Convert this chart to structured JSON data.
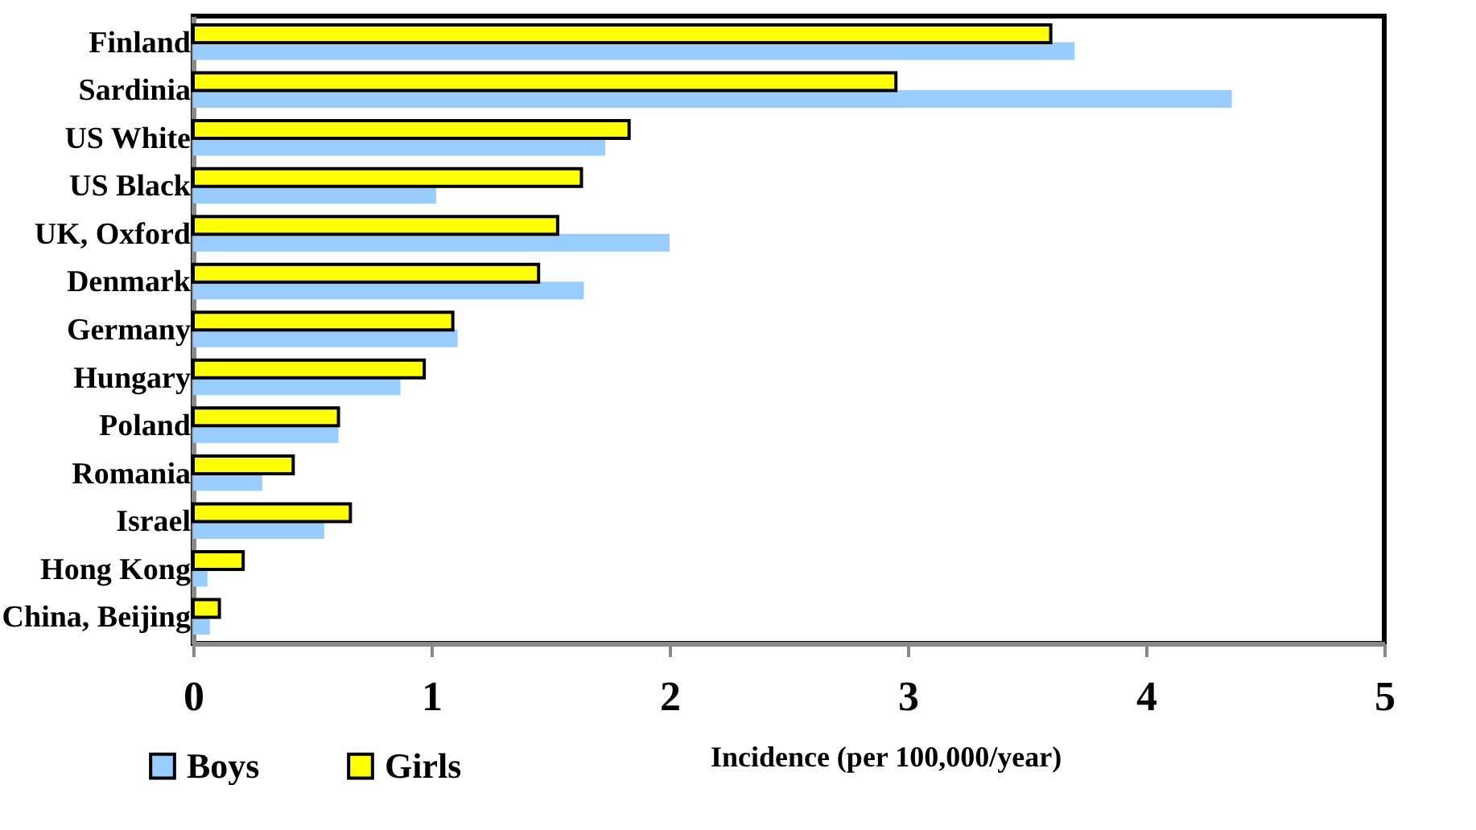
{
  "chart_data": {
    "type": "bar",
    "orientation": "horizontal",
    "xlabel": "Incidence (per 100,000/year)",
    "categories": [
      "Finland",
      "Sardinia",
      "US White",
      "US Black",
      "UK, Oxford",
      "Denmark",
      "Germany",
      "Hungary",
      "Poland",
      "Romania",
      "Israel",
      "Hong Kong",
      "China, Beijing"
    ],
    "series": [
      {
        "name": "Boys",
        "color": "#99ccff",
        "values": [
          3.7,
          4.36,
          1.73,
          1.02,
          2.0,
          1.64,
          1.11,
          0.87,
          0.61,
          0.29,
          0.55,
          0.06,
          0.07
        ]
      },
      {
        "name": "Girls",
        "color": "#ffff00",
        "values": [
          3.6,
          2.95,
          1.83,
          1.63,
          1.53,
          1.45,
          1.09,
          0.97,
          0.61,
          0.42,
          0.66,
          0.21,
          0.11
        ]
      }
    ],
    "xlim": [
      0,
      5
    ],
    "xticks": [
      0,
      1,
      2,
      3,
      4,
      5
    ],
    "grid": false,
    "legend": "bottom left"
  }
}
